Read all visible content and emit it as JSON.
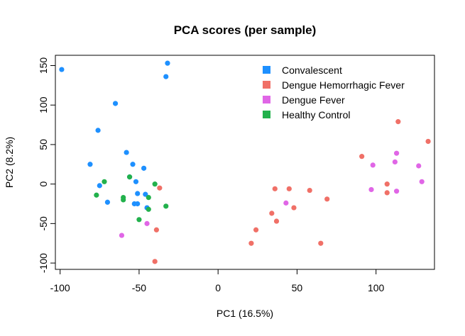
{
  "chart_data": {
    "type": "scatter",
    "title": "PCA scores (per sample)",
    "xlabel": "PC1 (16.5%)",
    "ylabel": "PC2 (8.2%)",
    "xlim": [
      -103,
      137
    ],
    "ylim": [
      -108,
      163
    ],
    "xticks": [
      -100,
      -50,
      0,
      50,
      100
    ],
    "yticks": [
      -100,
      -50,
      0,
      50,
      100,
      150
    ],
    "grid": false,
    "legend_position": "top-right",
    "series": [
      {
        "name": "Convalescent",
        "color": "#1e90ff",
        "points": [
          [
            -99,
            145
          ],
          [
            -32,
            153
          ],
          [
            -33,
            136
          ],
          [
            -65,
            102
          ],
          [
            -76,
            68
          ],
          [
            -81,
            25
          ],
          [
            -58,
            40
          ],
          [
            -54,
            25
          ],
          [
            -47,
            20
          ],
          [
            -56,
            9
          ],
          [
            -75,
            -2
          ],
          [
            -70,
            -23
          ],
          [
            -52,
            3
          ],
          [
            -51,
            -12
          ],
          [
            -53,
            -25
          ],
          [
            -51,
            -25
          ],
          [
            -45,
            -30
          ],
          [
            -46,
            -13
          ]
        ]
      },
      {
        "name": "Dengue Hemorrhagic Fever",
        "color": "#f07067",
        "points": [
          [
            -37,
            -5
          ],
          [
            -39,
            -58
          ],
          [
            -40,
            -98
          ],
          [
            21,
            -75
          ],
          [
            24,
            -58
          ],
          [
            34,
            -37
          ],
          [
            36,
            -6
          ],
          [
            37,
            -47
          ],
          [
            45,
            -6
          ],
          [
            48,
            -30
          ],
          [
            58,
            -8
          ],
          [
            65,
            -75
          ],
          [
            69,
            -19
          ],
          [
            91,
            35
          ],
          [
            107,
            0
          ],
          [
            107,
            -11
          ],
          [
            114,
            79
          ],
          [
            133,
            54
          ]
        ]
      },
      {
        "name": "Dengue Fever",
        "color": "#e066e6",
        "points": [
          [
            -61,
            -65
          ],
          [
            -45,
            -50
          ],
          [
            43,
            -24
          ],
          [
            97,
            -7
          ],
          [
            98,
            24
          ],
          [
            112,
            28
          ],
          [
            113,
            39
          ],
          [
            113,
            -9
          ],
          [
            127,
            23
          ],
          [
            129,
            3
          ]
        ]
      },
      {
        "name": "Healthy Control",
        "color": "#22b14c",
        "points": [
          [
            -72,
            3
          ],
          [
            -77,
            -14
          ],
          [
            -60,
            -17
          ],
          [
            -60,
            -20
          ],
          [
            -56,
            9
          ],
          [
            -40,
            0
          ],
          [
            -50,
            -45
          ],
          [
            -44,
            -17
          ],
          [
            -44,
            -32
          ],
          [
            -33,
            -28
          ]
        ]
      }
    ]
  }
}
